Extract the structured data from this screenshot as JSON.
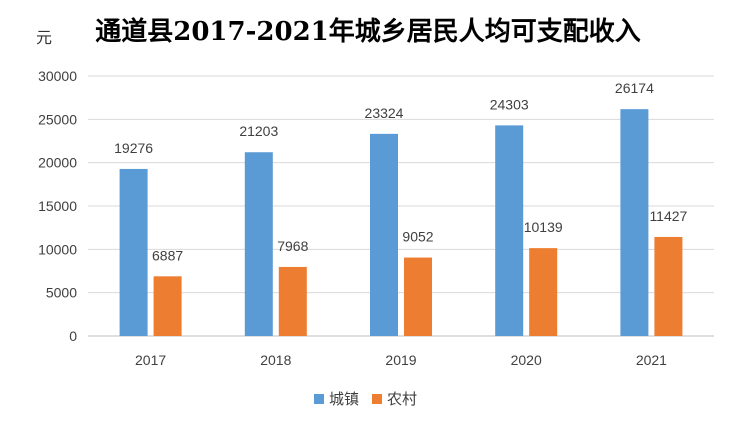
{
  "chart_data": {
    "type": "bar",
    "title": "通道县2017-2021年城乡居民人均可支配收入",
    "unit_label": "元",
    "categories": [
      "2017",
      "2018",
      "2019",
      "2020",
      "2021"
    ],
    "series": [
      {
        "name": "城镇",
        "color": "#5B9BD5",
        "values": [
          19276,
          21203,
          23324,
          24303,
          26174
        ]
      },
      {
        "name": "农村",
        "color": "#ED7D31",
        "values": [
          6887,
          7968,
          9052,
          10139,
          11427
        ]
      }
    ],
    "ylim": [
      0,
      30000
    ],
    "yticks": [
      0,
      5000,
      10000,
      15000,
      20000,
      25000,
      30000
    ],
    "grid": true,
    "legend_position": "bottom"
  }
}
